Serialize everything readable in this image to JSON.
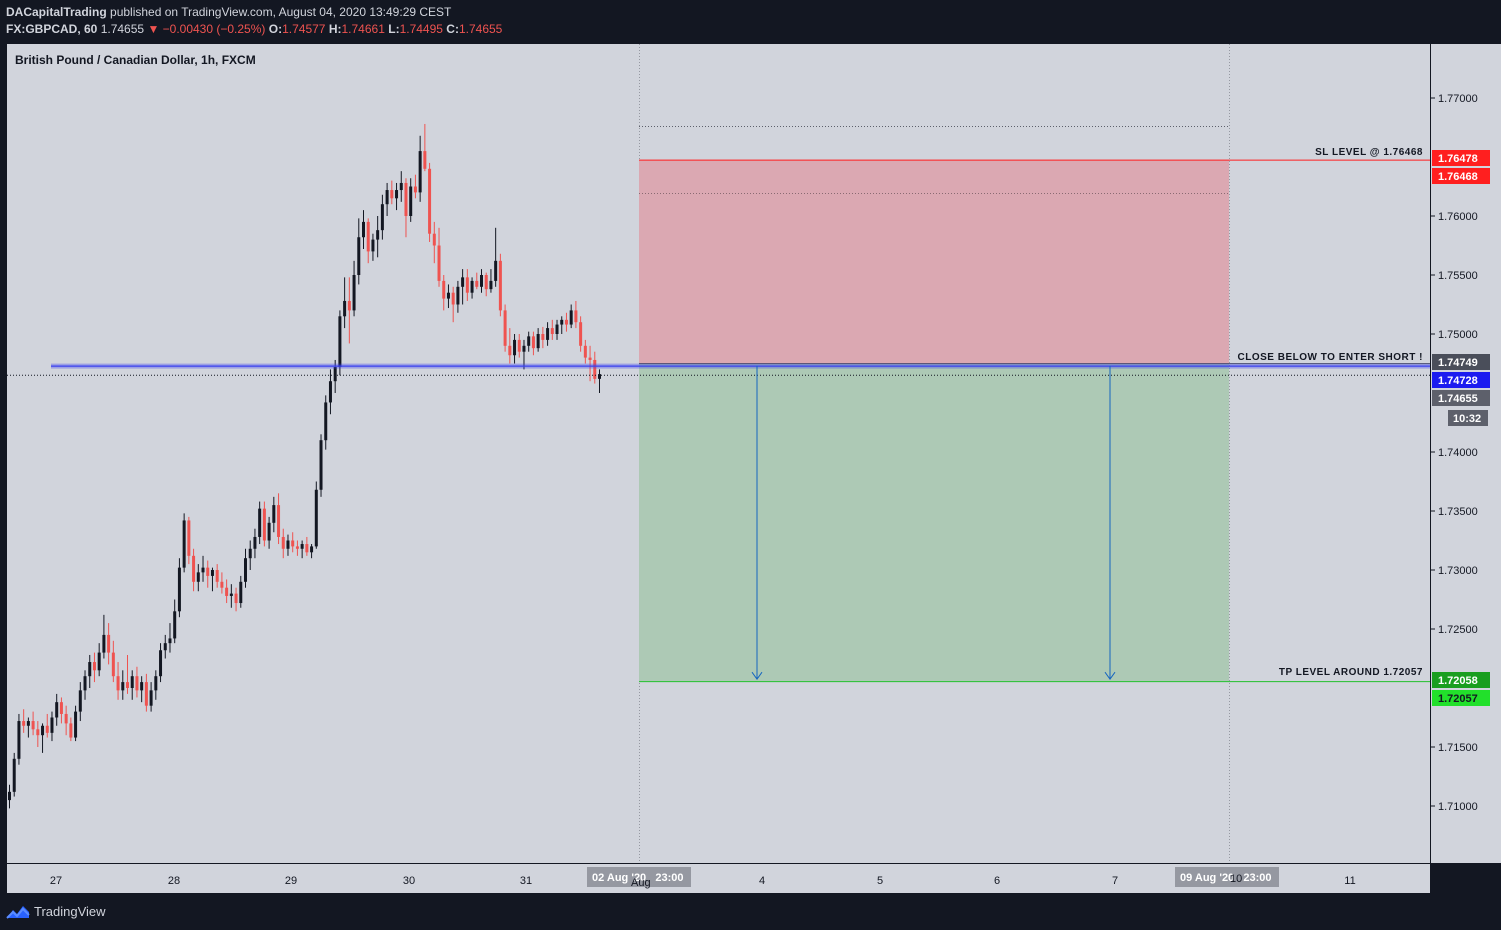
{
  "header": {
    "author": "DACapitalTrading",
    "published": "published on TradingView.com, August 04, 2020 13:49:29 CEST",
    "symbol": "FX:GBPCAD, 60",
    "last": "1.74655",
    "change": "▼ −0.00430 (−0.25%)",
    "o_label": "O:",
    "o_val": "1.74577",
    "h_label": "H:",
    "h_val": "1.74661",
    "l_label": "L:",
    "l_val": "1.74495",
    "c_label": "C:",
    "c_val": "1.74655"
  },
  "footer": {
    "brand": "TradingView"
  },
  "colors": {
    "background": "#d1d4dc",
    "bull": "#131722",
    "bear": "#ef5350",
    "stop_zone": "#dba8b2",
    "target_zone": "#adc9b5",
    "sl_line": "#ff1f1f",
    "tp_line": "#22c02b",
    "entry_line": "#3a3ff0",
    "arrow": "#1565c0"
  },
  "chart_data": {
    "type": "candlestick",
    "title": "British Pound / Canadian Dollar, 1h, FXCM",
    "y_ticks": [
      "1.77000",
      "1.76000",
      "1.75500",
      "1.75000",
      "1.74000",
      "1.73500",
      "1.73000",
      "1.72500",
      "1.71500",
      "1.71000"
    ],
    "x_ticks": [
      "27",
      "28",
      "29",
      "30",
      "31",
      "4",
      "5",
      "6",
      "7",
      "11"
    ],
    "x_range_badges": [
      "02 Aug '20   23:00",
      "09 Aug '20   23:00"
    ],
    "x_hidden_tick_1": "Aug",
    "x_hidden_tick_2": "10",
    "ylim": [
      1.7067,
      1.7725
    ],
    "price_levels": {
      "sl": {
        "label": "1.76478",
        "value": 1.76478
      },
      "sl2": {
        "label": "1.76468",
        "value": 1.76468
      },
      "entry": {
        "label": "1.74749",
        "value": 1.74749
      },
      "entry_line": {
        "label": "1.74728",
        "value": 1.74728
      },
      "last": {
        "label": "1.74655",
        "value": 1.74655
      },
      "tp": {
        "label": "1.72058",
        "value": 1.72058
      },
      "tp2": {
        "label": "1.72057",
        "value": 1.72057
      }
    },
    "countdown": "10:32",
    "annotations": {
      "sl_text": "SL LEVEL @ 1.76468",
      "entry_text": "CLOSE BELOW TO ENTER SHORT !",
      "tp_text": "TP LEVEL AROUND 1.72057"
    },
    "candles": [
      {
        "o": 1.7105,
        "h": 1.7118,
        "l": 1.7098,
        "c": 1.7112
      },
      {
        "o": 1.7112,
        "h": 1.7145,
        "l": 1.7108,
        "c": 1.714
      },
      {
        "o": 1.714,
        "h": 1.7178,
        "l": 1.7135,
        "c": 1.7172
      },
      {
        "o": 1.7172,
        "h": 1.7182,
        "l": 1.7162,
        "c": 1.7168
      },
      {
        "o": 1.7168,
        "h": 1.7175,
        "l": 1.7158,
        "c": 1.7172
      },
      {
        "o": 1.7172,
        "h": 1.718,
        "l": 1.716,
        "c": 1.7165
      },
      {
        "o": 1.7165,
        "h": 1.7172,
        "l": 1.715,
        "c": 1.716
      },
      {
        "o": 1.716,
        "h": 1.717,
        "l": 1.7145,
        "c": 1.7168
      },
      {
        "o": 1.7168,
        "h": 1.7178,
        "l": 1.7158,
        "c": 1.7162
      },
      {
        "o": 1.7162,
        "h": 1.718,
        "l": 1.7155,
        "c": 1.7175
      },
      {
        "o": 1.7175,
        "h": 1.7195,
        "l": 1.7168,
        "c": 1.7188
      },
      {
        "o": 1.7188,
        "h": 1.7192,
        "l": 1.717,
        "c": 1.7178
      },
      {
        "o": 1.7178,
        "h": 1.7185,
        "l": 1.716,
        "c": 1.717
      },
      {
        "o": 1.717,
        "h": 1.7175,
        "l": 1.7155,
        "c": 1.7158
      },
      {
        "o": 1.7158,
        "h": 1.7185,
        "l": 1.7155,
        "c": 1.718
      },
      {
        "o": 1.718,
        "h": 1.7205,
        "l": 1.7172,
        "c": 1.7198
      },
      {
        "o": 1.7198,
        "h": 1.7215,
        "l": 1.719,
        "c": 1.721
      },
      {
        "o": 1.721,
        "h": 1.7228,
        "l": 1.72,
        "c": 1.7222
      },
      {
        "o": 1.7222,
        "h": 1.723,
        "l": 1.7205,
        "c": 1.7215
      },
      {
        "o": 1.7215,
        "h": 1.7238,
        "l": 1.721,
        "c": 1.723
      },
      {
        "o": 1.723,
        "h": 1.7262,
        "l": 1.7225,
        "c": 1.7245
      },
      {
        "o": 1.7245,
        "h": 1.7255,
        "l": 1.722,
        "c": 1.723
      },
      {
        "o": 1.723,
        "h": 1.724,
        "l": 1.7205,
        "c": 1.721
      },
      {
        "o": 1.721,
        "h": 1.7222,
        "l": 1.719,
        "c": 1.7198
      },
      {
        "o": 1.7198,
        "h": 1.7215,
        "l": 1.719,
        "c": 1.7205
      },
      {
        "o": 1.7205,
        "h": 1.7228,
        "l": 1.7195,
        "c": 1.72
      },
      {
        "o": 1.72,
        "h": 1.7215,
        "l": 1.719,
        "c": 1.721
      },
      {
        "o": 1.721,
        "h": 1.7218,
        "l": 1.7192,
        "c": 1.7198
      },
      {
        "o": 1.7198,
        "h": 1.721,
        "l": 1.7188,
        "c": 1.7205
      },
      {
        "o": 1.7205,
        "h": 1.7212,
        "l": 1.718,
        "c": 1.7185
      },
      {
        "o": 1.7185,
        "h": 1.7205,
        "l": 1.718,
        "c": 1.7198
      },
      {
        "o": 1.7198,
        "h": 1.7215,
        "l": 1.719,
        "c": 1.721
      },
      {
        "o": 1.721,
        "h": 1.7238,
        "l": 1.7205,
        "c": 1.7232
      },
      {
        "o": 1.7232,
        "h": 1.7245,
        "l": 1.7225,
        "c": 1.7238
      },
      {
        "o": 1.7238,
        "h": 1.7255,
        "l": 1.723,
        "c": 1.7242
      },
      {
        "o": 1.7242,
        "h": 1.7275,
        "l": 1.7238,
        "c": 1.7265
      },
      {
        "o": 1.7265,
        "h": 1.731,
        "l": 1.726,
        "c": 1.7302
      },
      {
        "o": 1.7302,
        "h": 1.7348,
        "l": 1.7298,
        "c": 1.7342
      },
      {
        "o": 1.7342,
        "h": 1.7345,
        "l": 1.7305,
        "c": 1.7312
      },
      {
        "o": 1.7312,
        "h": 1.7318,
        "l": 1.7282,
        "c": 1.729
      },
      {
        "o": 1.729,
        "h": 1.7305,
        "l": 1.7282,
        "c": 1.7298
      },
      {
        "o": 1.7298,
        "h": 1.7312,
        "l": 1.729,
        "c": 1.7302
      },
      {
        "o": 1.7302,
        "h": 1.7308,
        "l": 1.7285,
        "c": 1.7295
      },
      {
        "o": 1.7295,
        "h": 1.7302,
        "l": 1.7282,
        "c": 1.73
      },
      {
        "o": 1.73,
        "h": 1.7305,
        "l": 1.7285,
        "c": 1.729
      },
      {
        "o": 1.729,
        "h": 1.7298,
        "l": 1.728,
        "c": 1.7285
      },
      {
        "o": 1.7285,
        "h": 1.7292,
        "l": 1.7272,
        "c": 1.7278
      },
      {
        "o": 1.7278,
        "h": 1.7288,
        "l": 1.7268,
        "c": 1.728
      },
      {
        "o": 1.728,
        "h": 1.7285,
        "l": 1.7265,
        "c": 1.7272
      },
      {
        "o": 1.7272,
        "h": 1.7295,
        "l": 1.7268,
        "c": 1.729
      },
      {
        "o": 1.729,
        "h": 1.7318,
        "l": 1.7285,
        "c": 1.731
      },
      {
        "o": 1.731,
        "h": 1.7325,
        "l": 1.73,
        "c": 1.7318
      },
      {
        "o": 1.7318,
        "h": 1.7335,
        "l": 1.731,
        "c": 1.7328
      },
      {
        "o": 1.7328,
        "h": 1.7358,
        "l": 1.7322,
        "c": 1.7352
      },
      {
        "o": 1.7352,
        "h": 1.7358,
        "l": 1.732,
        "c": 1.7325
      },
      {
        "o": 1.7325,
        "h": 1.7345,
        "l": 1.7318,
        "c": 1.734
      },
      {
        "o": 1.734,
        "h": 1.7362,
        "l": 1.7332,
        "c": 1.7355
      },
      {
        "o": 1.7355,
        "h": 1.7365,
        "l": 1.7322,
        "c": 1.7328
      },
      {
        "o": 1.7328,
        "h": 1.7335,
        "l": 1.731,
        "c": 1.7318
      },
      {
        "o": 1.7318,
        "h": 1.733,
        "l": 1.7312,
        "c": 1.7325
      },
      {
        "o": 1.7325,
        "h": 1.7332,
        "l": 1.7315,
        "c": 1.732
      },
      {
        "o": 1.732,
        "h": 1.7325,
        "l": 1.7312,
        "c": 1.7318
      },
      {
        "o": 1.7318,
        "h": 1.7325,
        "l": 1.731,
        "c": 1.7322
      },
      {
        "o": 1.7322,
        "h": 1.7328,
        "l": 1.7312,
        "c": 1.7315
      },
      {
        "o": 1.7315,
        "h": 1.7322,
        "l": 1.731,
        "c": 1.732
      },
      {
        "o": 1.732,
        "h": 1.7375,
        "l": 1.7318,
        "c": 1.7368
      },
      {
        "o": 1.7368,
        "h": 1.7415,
        "l": 1.7362,
        "c": 1.741
      },
      {
        "o": 1.741,
        "h": 1.7448,
        "l": 1.7402,
        "c": 1.7442
      },
      {
        "o": 1.7442,
        "h": 1.747,
        "l": 1.7432,
        "c": 1.746
      },
      {
        "o": 1.746,
        "h": 1.7478,
        "l": 1.745,
        "c": 1.7472
      },
      {
        "o": 1.7472,
        "h": 1.752,
        "l": 1.7465,
        "c": 1.7515
      },
      {
        "o": 1.7515,
        "h": 1.7548,
        "l": 1.7505,
        "c": 1.7528
      },
      {
        "o": 1.7528,
        "h": 1.7548,
        "l": 1.7492,
        "c": 1.752
      },
      {
        "o": 1.752,
        "h": 1.7562,
        "l": 1.7515,
        "c": 1.755
      },
      {
        "o": 1.755,
        "h": 1.7598,
        "l": 1.7542,
        "c": 1.7582
      },
      {
        "o": 1.7582,
        "h": 1.7605,
        "l": 1.7572,
        "c": 1.7595
      },
      {
        "o": 1.7595,
        "h": 1.7598,
        "l": 1.756,
        "c": 1.757
      },
      {
        "o": 1.757,
        "h": 1.7585,
        "l": 1.7562,
        "c": 1.758
      },
      {
        "o": 1.758,
        "h": 1.76,
        "l": 1.7565,
        "c": 1.7588
      },
      {
        "o": 1.7588,
        "h": 1.7618,
        "l": 1.758,
        "c": 1.761
      },
      {
        "o": 1.761,
        "h": 1.7628,
        "l": 1.76,
        "c": 1.7622
      },
      {
        "o": 1.7622,
        "h": 1.763,
        "l": 1.761,
        "c": 1.7615
      },
      {
        "o": 1.7615,
        "h": 1.7628,
        "l": 1.7605,
        "c": 1.7622
      },
      {
        "o": 1.7622,
        "h": 1.7638,
        "l": 1.7612,
        "c": 1.7628
      },
      {
        "o": 1.7628,
        "h": 1.7632,
        "l": 1.7582,
        "c": 1.76
      },
      {
        "o": 1.76,
        "h": 1.7632,
        "l": 1.7595,
        "c": 1.7625
      },
      {
        "o": 1.7625,
        "h": 1.7635,
        "l": 1.7615,
        "c": 1.762
      },
      {
        "o": 1.762,
        "h": 1.7668,
        "l": 1.7612,
        "c": 1.7655
      },
      {
        "o": 1.7655,
        "h": 1.7678,
        "l": 1.7638,
        "c": 1.764
      },
      {
        "o": 1.764,
        "h": 1.7645,
        "l": 1.7578,
        "c": 1.7585
      },
      {
        "o": 1.7585,
        "h": 1.7595,
        "l": 1.756,
        "c": 1.7575
      },
      {
        "o": 1.7575,
        "h": 1.759,
        "l": 1.754,
        "c": 1.7545
      },
      {
        "o": 1.7545,
        "h": 1.755,
        "l": 1.752,
        "c": 1.753
      },
      {
        "o": 1.753,
        "h": 1.7542,
        "l": 1.7522,
        "c": 1.7535
      },
      {
        "o": 1.7535,
        "h": 1.754,
        "l": 1.751,
        "c": 1.7525
      },
      {
        "o": 1.7525,
        "h": 1.7545,
        "l": 1.7518,
        "c": 1.754
      },
      {
        "o": 1.754,
        "h": 1.7555,
        "l": 1.7525,
        "c": 1.7548
      },
      {
        "o": 1.7548,
        "h": 1.7555,
        "l": 1.7528,
        "c": 1.7535
      },
      {
        "o": 1.7535,
        "h": 1.7548,
        "l": 1.753,
        "c": 1.7545
      },
      {
        "o": 1.7545,
        "h": 1.7552,
        "l": 1.7538,
        "c": 1.754
      },
      {
        "o": 1.754,
        "h": 1.7555,
        "l": 1.7535,
        "c": 1.755
      },
      {
        "o": 1.755,
        "h": 1.7552,
        "l": 1.7532,
        "c": 1.7538
      },
      {
        "o": 1.7538,
        "h": 1.7555,
        "l": 1.7535,
        "c": 1.7545
      },
      {
        "o": 1.7545,
        "h": 1.759,
        "l": 1.754,
        "c": 1.7562
      },
      {
        "o": 1.7562,
        "h": 1.7568,
        "l": 1.7515,
        "c": 1.752
      },
      {
        "o": 1.752,
        "h": 1.7525,
        "l": 1.7485,
        "c": 1.749
      },
      {
        "o": 1.749,
        "h": 1.7505,
        "l": 1.7475,
        "c": 1.7482
      },
      {
        "o": 1.7482,
        "h": 1.75,
        "l": 1.7475,
        "c": 1.7495
      },
      {
        "o": 1.7495,
        "h": 1.75,
        "l": 1.748,
        "c": 1.7485
      },
      {
        "o": 1.7485,
        "h": 1.7495,
        "l": 1.747,
        "c": 1.749
      },
      {
        "o": 1.749,
        "h": 1.7502,
        "l": 1.7485,
        "c": 1.7498
      },
      {
        "o": 1.7498,
        "h": 1.7502,
        "l": 1.7482,
        "c": 1.7488
      },
      {
        "o": 1.7488,
        "h": 1.7505,
        "l": 1.7485,
        "c": 1.75
      },
      {
        "o": 1.75,
        "h": 1.7506,
        "l": 1.7488,
        "c": 1.7495
      },
      {
        "o": 1.7495,
        "h": 1.751,
        "l": 1.749,
        "c": 1.7505
      },
      {
        "o": 1.7505,
        "h": 1.7512,
        "l": 1.7495,
        "c": 1.75
      },
      {
        "o": 1.75,
        "h": 1.7512,
        "l": 1.7495,
        "c": 1.7508
      },
      {
        "o": 1.7508,
        "h": 1.7515,
        "l": 1.75,
        "c": 1.7512
      },
      {
        "o": 1.7512,
        "h": 1.7518,
        "l": 1.7502,
        "c": 1.7508
      },
      {
        "o": 1.7508,
        "h": 1.7525,
        "l": 1.7505,
        "c": 1.752
      },
      {
        "o": 1.752,
        "h": 1.7528,
        "l": 1.7505,
        "c": 1.751
      },
      {
        "o": 1.751,
        "h": 1.7515,
        "l": 1.7485,
        "c": 1.749
      },
      {
        "o": 1.749,
        "h": 1.7495,
        "l": 1.7475,
        "c": 1.748
      },
      {
        "o": 1.748,
        "h": 1.749,
        "l": 1.746,
        "c": 1.7478
      },
      {
        "o": 1.7478,
        "h": 1.7485,
        "l": 1.7458,
        "c": 1.7462
      },
      {
        "o": 1.7462,
        "h": 1.747,
        "l": 1.745,
        "c": 1.7466
      }
    ]
  }
}
